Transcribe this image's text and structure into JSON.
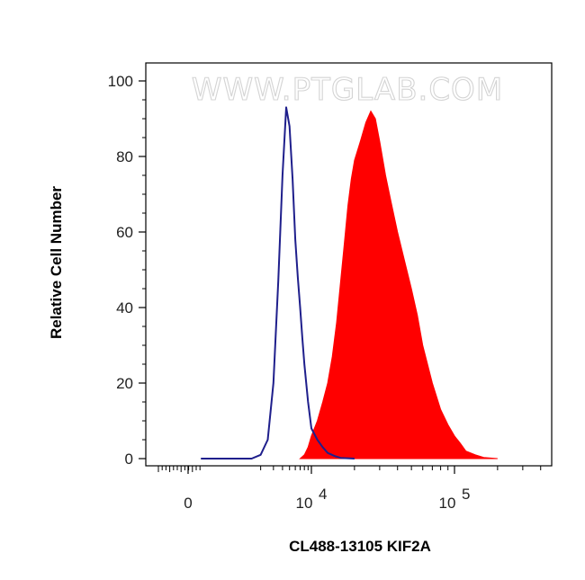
{
  "chart_data": {
    "type": "area",
    "xlabel": "CL488-13105 KIF2A",
    "ylabel": "Relative Cell Number",
    "watermark": "WWW.PTGLAB.COM",
    "x_scale": "biexponential",
    "x_ticks": [
      {
        "value": 0,
        "base": "0",
        "exp": ""
      },
      {
        "value": 10000,
        "base": "10",
        "exp": "4"
      },
      {
        "value": 100000,
        "base": "10",
        "exp": "5"
      }
    ],
    "y_ticks": [
      0,
      20,
      40,
      60,
      80,
      100
    ],
    "ylim": [
      0,
      100
    ],
    "grid": false,
    "legend": "none",
    "series": [
      {
        "style": "outline",
        "color": "#1f1f8c",
        "x": [
          300,
          1500,
          2000,
          2500,
          3000,
          3500,
          4000,
          4500,
          5000,
          5500,
          6000,
          6500,
          7000,
          7500,
          8000,
          9000,
          10000,
          11000,
          12000,
          13000,
          14500,
          16000,
          20000
        ],
        "y": [
          0,
          0,
          1,
          5,
          20,
          47,
          75,
          93,
          88,
          74,
          58,
          48,
          40,
          32,
          25,
          15,
          8,
          5,
          3,
          1.5,
          0.7,
          0.2,
          0
        ]
      },
      {
        "style": "filled",
        "color": "#ff0000",
        "x": [
          7000,
          8000,
          9000,
          10000,
          11000,
          12000,
          13000,
          14000,
          15000,
          16000,
          17000,
          18000,
          19000,
          20000,
          22000,
          24000,
          26000,
          28000,
          30000,
          33000,
          36000,
          40000,
          45000,
          50000,
          55000,
          60000,
          70000,
          80000,
          90000,
          100000,
          110000,
          120000,
          140000,
          160000,
          200000
        ],
        "y": [
          0,
          1,
          3,
          6,
          10,
          15,
          20,
          27,
          36,
          47,
          57,
          67,
          74,
          79,
          84,
          89,
          92,
          90,
          84,
          75,
          68,
          60,
          52,
          45,
          38,
          30,
          20,
          13,
          9,
          6,
          4,
          2,
          1,
          0.3,
          0
        ]
      }
    ]
  }
}
